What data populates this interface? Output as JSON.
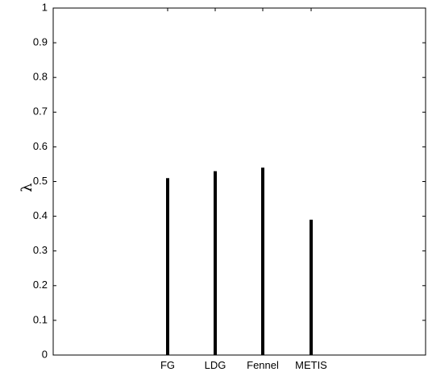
{
  "chart_data": {
    "type": "bar",
    "categories": [
      "FG",
      "LDG",
      "Fennel",
      "METIS"
    ],
    "values": [
      0.51,
      0.53,
      0.54,
      0.39
    ],
    "title": "",
    "xlabel": "",
    "ylabel": "λ",
    "ylim": [
      0,
      1
    ],
    "yticks": [
      "0",
      "0.1",
      "0.2",
      "0.3",
      "0.4",
      "0.5",
      "0.6",
      "0.7",
      "0.8",
      "0.9",
      "1"
    ],
    "grid": false,
    "colors": {
      "bar": "#000000",
      "axis": "#000000",
      "background": "#ffffff"
    }
  }
}
